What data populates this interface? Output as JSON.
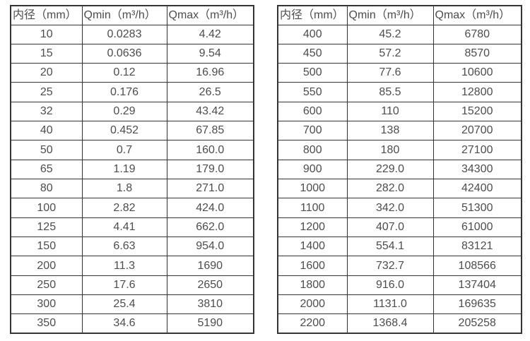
{
  "colors": {
    "border": "#333333",
    "text": "#4d4d4d",
    "background": "#ffffff"
  },
  "chart_data": [
    {
      "type": "table",
      "headers": [
        "内径（mm）",
        "Qmin（m³/h）",
        "Qmax（m³/h）"
      ],
      "rows": [
        [
          "10",
          "0.0283",
          "4.42"
        ],
        [
          "15",
          "0.0636",
          "9.54"
        ],
        [
          "20",
          "0.12",
          "16.96"
        ],
        [
          "25",
          "0.176",
          "26.5"
        ],
        [
          "32",
          "0.29",
          "43.42"
        ],
        [
          "40",
          "0.452",
          "67.85"
        ],
        [
          "50",
          "0.7",
          "160.0"
        ],
        [
          "65",
          "1.19",
          "179.0"
        ],
        [
          "80",
          "1.8",
          "271.0"
        ],
        [
          "100",
          "2.82",
          "424.0"
        ],
        [
          "125",
          "4.41",
          "662.0"
        ],
        [
          "150",
          "6.63",
          "954.0"
        ],
        [
          "200",
          "11.3",
          "1690"
        ],
        [
          "250",
          "17.6",
          "2650"
        ],
        [
          "300",
          "25.4",
          "3810"
        ],
        [
          "350",
          "34.6",
          "5190"
        ]
      ]
    },
    {
      "type": "table",
      "headers": [
        "内径（mm）",
        "Qmin（m³/h）",
        "Qmax（m³/h）"
      ],
      "rows": [
        [
          "400",
          "45.2",
          "6780"
        ],
        [
          "450",
          "57.2",
          "8570"
        ],
        [
          "500",
          "77.6",
          "10600"
        ],
        [
          "550",
          "85.5",
          "12800"
        ],
        [
          "600",
          "110",
          "15200"
        ],
        [
          "700",
          "138",
          "20700"
        ],
        [
          "800",
          "180",
          "27100"
        ],
        [
          "900",
          "229.0",
          "34300"
        ],
        [
          "1000",
          "282.0",
          "42400"
        ],
        [
          "1100",
          "342.0",
          "51300"
        ],
        [
          "1200",
          "407.0",
          "61000"
        ],
        [
          "1400",
          "554.1",
          "83121"
        ],
        [
          "1600",
          "732.7",
          "108566"
        ],
        [
          "1800",
          "916.0",
          "137404"
        ],
        [
          "2000",
          "1131.0",
          "169635"
        ],
        [
          "2200",
          "1368.4",
          "205258"
        ]
      ]
    }
  ]
}
